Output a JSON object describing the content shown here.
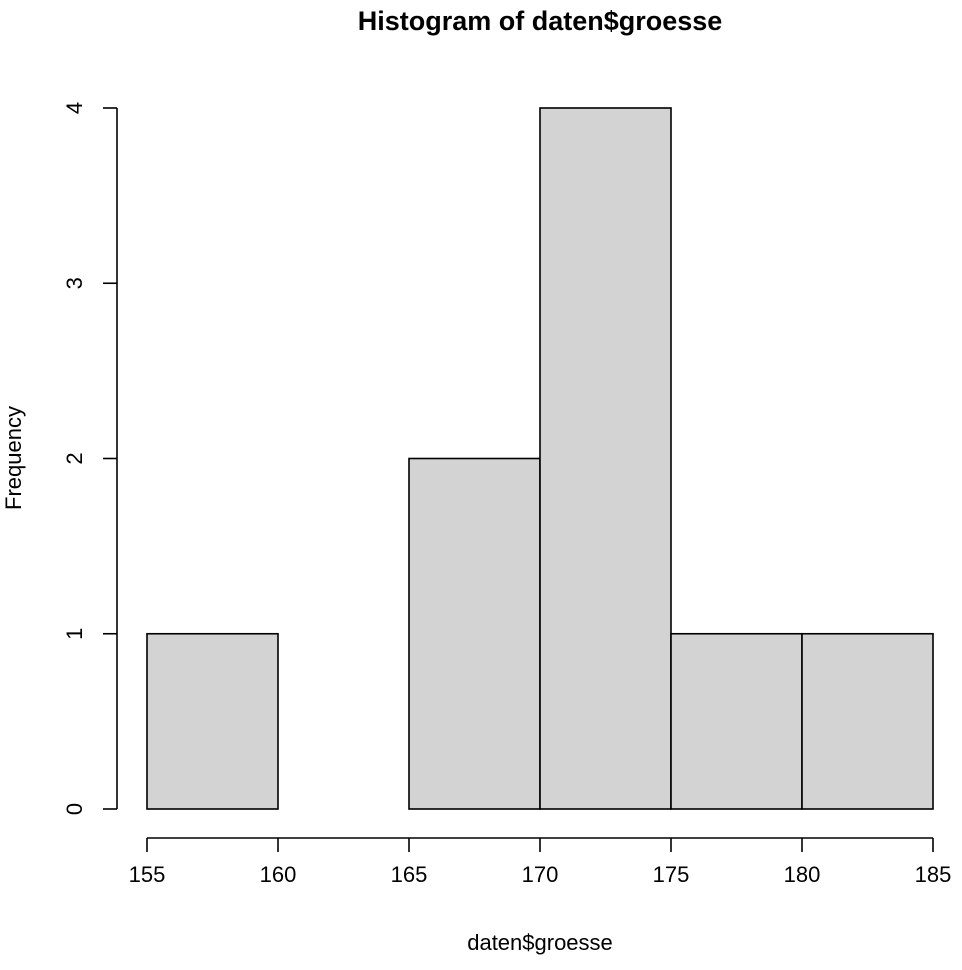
{
  "chart_data": {
    "type": "bar",
    "title": "Histogram of daten$groesse",
    "xlabel": "daten$groesse",
    "ylabel": "Frequency",
    "breaks": [
      155,
      160,
      165,
      170,
      175,
      180,
      185
    ],
    "values": [
      1,
      0,
      2,
      4,
      1,
      1
    ],
    "xlim": [
      155,
      185
    ],
    "ylim": [
      0,
      4
    ],
    "x_ticks": [
      155,
      160,
      165,
      170,
      175,
      180,
      185
    ],
    "y_ticks": [
      0,
      1,
      2,
      3,
      4
    ],
    "bar_color": "#d3d3d3",
    "grid": false,
    "legend": "none"
  }
}
